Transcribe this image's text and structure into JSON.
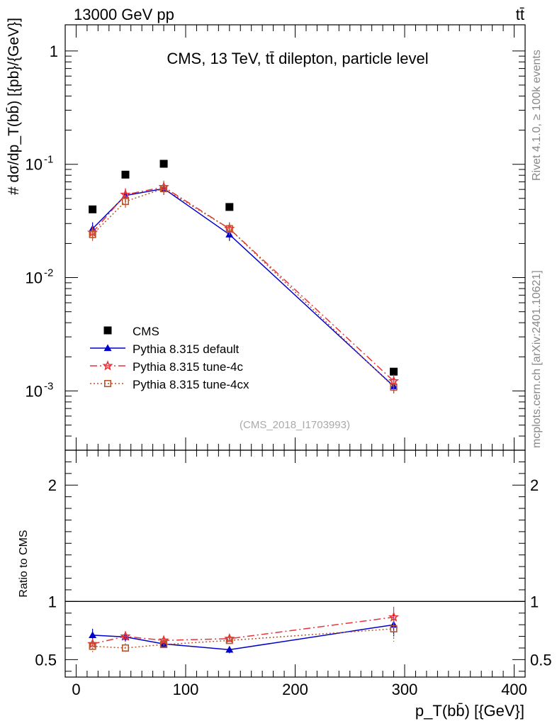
{
  "header": {
    "left": "13000 GeV pp",
    "right": "tt̄"
  },
  "side": {
    "rivet": "Rivet 4.1.0, ≥ 100k events",
    "mcplots": "mcplots.cern.ch [arXiv:2401.10621]"
  },
  "chart_data": [
    {
      "type": "line",
      "title": "CMS, 13 TeV, tt̄ dilepton, particle level",
      "annotation": "(CMS_2018_I1703993)",
      "ylabel": "# dσ/dp_T(bb̄) [{pb}/{GeV}]",
      "yscale": "log",
      "ylim": [
        0.0003,
        1.7
      ],
      "xlim": [
        -10,
        410
      ],
      "y_ticks": [
        {
          "value": 0.001,
          "label": "10",
          "exp": "-3"
        },
        {
          "value": 0.01,
          "label": "10",
          "exp": "-2"
        },
        {
          "value": 0.1,
          "label": "10",
          "exp": "-1"
        },
        {
          "value": 1,
          "label": "1",
          "exp": ""
        }
      ],
      "legend_position": "bottom-left",
      "series": [
        {
          "name": "CMS",
          "marker": "square",
          "color": "#000000",
          "x": [
            15,
            45,
            80,
            140,
            290
          ],
          "y": [
            0.04,
            0.081,
            0.101,
            0.042,
            0.00148
          ]
        },
        {
          "name": "Pythia 8.315 default",
          "marker": "triangle",
          "color": "#0000cc",
          "line": "solid",
          "x": [
            15,
            45,
            80,
            140,
            290
          ],
          "y": [
            0.027,
            0.053,
            0.061,
            0.024,
            0.0011
          ]
        },
        {
          "name": "Pythia 8.315 tune-4c",
          "marker": "star",
          "color": "#e8333a",
          "line": "dashdot",
          "x": [
            15,
            45,
            80,
            140,
            290
          ],
          "y": [
            0.025,
            0.054,
            0.063,
            0.027,
            0.00122
          ]
        },
        {
          "name": "Pythia 8.315 tune-4cx",
          "marker": "open-square",
          "color": "#b8542a",
          "line": "dotted",
          "x": [
            15,
            45,
            80,
            140,
            290
          ],
          "y": [
            0.024,
            0.047,
            0.061,
            0.027,
            0.00108
          ]
        }
      ]
    },
    {
      "type": "line",
      "ylabel": "Ratio to CMS",
      "xlabel": "p_T(bb̄) [{GeV}]",
      "ylim": [
        0.35,
        2.3
      ],
      "xlim": [
        -10,
        410
      ],
      "y_ticks": [
        0.5,
        1,
        2
      ],
      "x_ticks": [
        0,
        100,
        200,
        300,
        400
      ],
      "reference": 1,
      "series": [
        {
          "name": "Pythia 8.315 default",
          "x": [
            15,
            45,
            80,
            140,
            290
          ],
          "y": [
            0.71,
            0.695,
            0.635,
            0.585,
            0.8
          ],
          "err": [
            0.055,
            0.04,
            0.03,
            0.03,
            0.1
          ]
        },
        {
          "name": "Pythia 8.315 tune-4c",
          "x": [
            15,
            45,
            80,
            140,
            290
          ],
          "y": [
            0.635,
            0.7,
            0.665,
            0.68,
            0.865
          ],
          "err": [
            0.04,
            0.045,
            0.035,
            0.035,
            0.09
          ]
        },
        {
          "name": "Pythia 8.315 tune-4cx",
          "x": [
            15,
            45,
            80,
            140,
            290
          ],
          "y": [
            0.615,
            0.6,
            0.63,
            0.665,
            0.765
          ],
          "err": [
            0.05,
            0.04,
            0.03,
            0.03,
            0.11
          ]
        }
      ]
    }
  ]
}
